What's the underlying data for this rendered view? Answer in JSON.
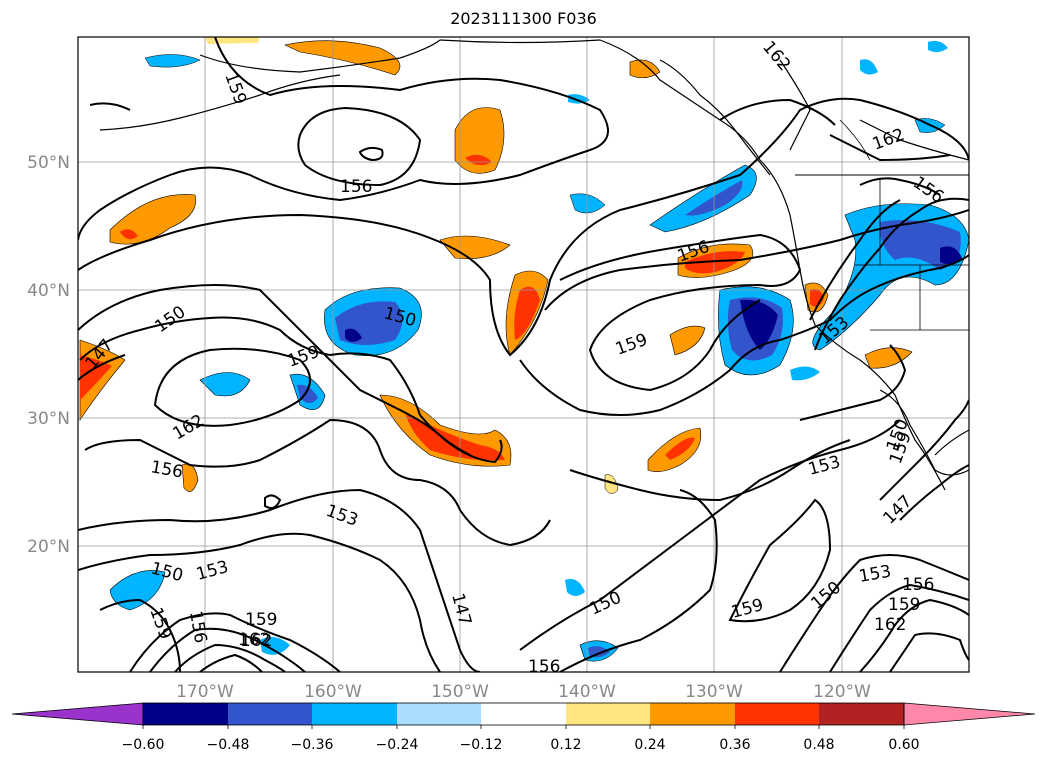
{
  "title": "2023111300 F036",
  "map": {
    "lat_labels": [
      "50°N",
      "40°N",
      "30°N",
      "20°N"
    ],
    "lon_labels": [
      "170°W",
      "160°W",
      "150°W",
      "140°W",
      "130°W",
      "120°W"
    ],
    "contour_labels": [
      "159",
      "162",
      "162",
      "156",
      "150",
      "150",
      "147",
      "159",
      "162",
      "156",
      "156",
      "159",
      "153",
      "153",
      "150",
      "147",
      "150",
      "153",
      "159",
      "156",
      "159",
      "162",
      "162",
      "153",
      "150",
      "153",
      "156",
      "159",
      "162",
      "147",
      "150",
      "159",
      "156",
      "156",
      "159"
    ]
  },
  "colorbar": {
    "tick_labels": [
      "−0.60",
      "−0.48",
      "−0.36",
      "−0.24",
      "−0.12",
      "0.12",
      "0.24",
      "0.36",
      "0.48",
      "0.60"
    ],
    "colors": [
      "#9933cc",
      "#000088",
      "#3355cc",
      "#00b4ff",
      "#aaddff",
      "#ffffff",
      "#ffe680",
      "#ff9900",
      "#ff3300",
      "#b22222",
      "#ff88aa"
    ]
  }
}
